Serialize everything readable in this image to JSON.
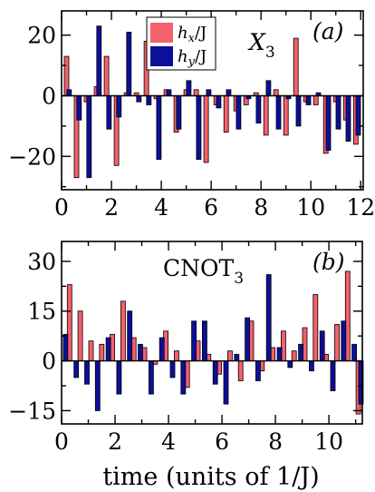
{
  "colors": {
    "hx": "#f4606b",
    "hy": "#0c0f9a",
    "axis": "#000000"
  },
  "xlabel": "time (units of 1/J)",
  "legend": {
    "hx": "h_x/J",
    "hy": "h_y/J"
  },
  "chart_data": [
    {
      "type": "bar",
      "panel_label": "(a)",
      "operator": "X_3",
      "xlim": [
        0,
        12.1
      ],
      "ylim": [
        -31,
        28
      ],
      "xticks": [
        0,
        2,
        4,
        6,
        8,
        10,
        12
      ],
      "yticks": [
        -20,
        0,
        20
      ],
      "ytick_labels": [
        "−20",
        "0",
        "20"
      ],
      "bar_width": 0.18,
      "series": [
        {
          "name": "h_x/J",
          "x": [
            0.2,
            0.6,
            1.0,
            1.4,
            1.8,
            2.2,
            2.6,
            3.0,
            3.4,
            3.8,
            4.2,
            4.6,
            5.0,
            5.4,
            5.8,
            6.2,
            6.6,
            7.0,
            7.4,
            7.8,
            8.2,
            8.6,
            9.0,
            9.4,
            9.8,
            10.2,
            10.6,
            11.0,
            11.4,
            11.8
          ],
          "values": [
            13,
            -27,
            -2,
            3,
            13,
            -23,
            1,
            1,
            18,
            -1,
            2,
            -12,
            2,
            2,
            -22,
            -3,
            -12,
            -5,
            -3,
            1,
            -13,
            2,
            -13,
            19,
            -2,
            -3,
            -19,
            -2,
            -8,
            -16
          ]
        },
        {
          "name": "h_y/J",
          "x": [
            0.3,
            0.7,
            1.1,
            1.5,
            1.9,
            2.3,
            2.7,
            3.1,
            3.5,
            3.9,
            4.3,
            4.7,
            5.1,
            5.5,
            5.9,
            6.3,
            6.7,
            7.1,
            7.5,
            7.9,
            8.3,
            8.7,
            9.1,
            9.5,
            9.9,
            10.3,
            10.7,
            11.1,
            11.5,
            11.9
          ],
          "values": [
            2,
            -8,
            -27,
            23,
            -11,
            -7,
            21,
            -2,
            -3,
            -21,
            2,
            -11,
            5,
            -21,
            2,
            -4,
            2,
            -11,
            -1,
            -9,
            5,
            -11,
            -1,
            -10,
            -3,
            1,
            -18,
            -11,
            -15,
            -13
          ]
        }
      ]
    },
    {
      "type": "bar",
      "panel_label": "(b)",
      "operator": "CNOT_3",
      "xlim": [
        0,
        11.25
      ],
      "ylim": [
        -19,
        36
      ],
      "xticks": [
        0,
        2,
        4,
        6,
        8,
        10
      ],
      "yticks": [
        -15,
        0,
        15,
        30
      ],
      "ytick_labels": [
        "−15",
        "0",
        "15",
        "30"
      ],
      "bar_width": 0.17,
      "series": [
        {
          "name": "h_x/J",
          "x": [
            0.3,
            0.7,
            1.1,
            1.5,
            1.9,
            2.3,
            2.7,
            3.1,
            3.5,
            3.9,
            4.3,
            4.7,
            5.1,
            5.5,
            5.9,
            6.3,
            6.7,
            7.1,
            7.5,
            7.9,
            8.3,
            8.7,
            9.1,
            9.5,
            9.9,
            10.3,
            10.7,
            11.1
          ],
          "values": [
            23,
            15,
            6,
            5,
            8,
            18,
            7,
            4,
            -1,
            9,
            3,
            -8,
            6,
            2,
            -4,
            3,
            -6,
            12,
            -3,
            4,
            9,
            3,
            10,
            20,
            2,
            11,
            27,
            -16
          ]
        },
        {
          "name": "h_y/J",
          "x": [
            0.15,
            0.55,
            0.95,
            1.35,
            1.75,
            2.15,
            2.55,
            2.95,
            3.35,
            3.75,
            4.15,
            4.55,
            4.95,
            5.35,
            5.75,
            6.15,
            6.55,
            6.95,
            7.35,
            7.75,
            8.15,
            8.55,
            8.95,
            9.35,
            9.75,
            10.15,
            10.55,
            10.95,
            11.2
          ],
          "values": [
            8,
            -5,
            -7,
            -15,
            7,
            -10,
            15,
            5,
            -10,
            7,
            -5,
            -10,
            12,
            12,
            -7,
            -13,
            2,
            13,
            -6,
            26,
            4,
            -2,
            5,
            -3,
            9,
            -9,
            12,
            5,
            -13
          ]
        }
      ]
    }
  ]
}
